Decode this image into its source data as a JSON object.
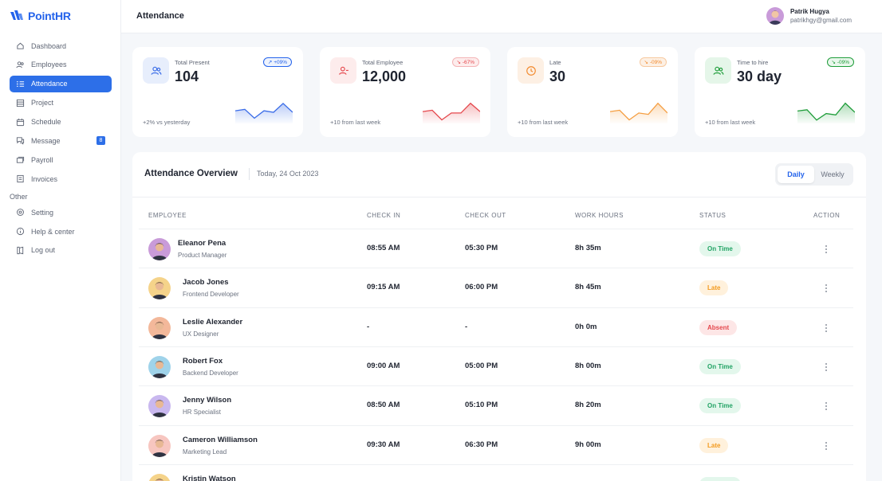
{
  "app": {
    "name": "PointHR"
  },
  "sidebar": {
    "items": [
      {
        "label": "Dashboard",
        "icon": "home-icon"
      },
      {
        "label": "Employees",
        "icon": "users-icon"
      },
      {
        "label": "Attendance",
        "icon": "list-icon",
        "active": true
      },
      {
        "label": "Project",
        "icon": "grid-icon"
      },
      {
        "label": "Schedule",
        "icon": "calendar-icon"
      },
      {
        "label": "Message",
        "icon": "chat-icon",
        "badge": "8"
      },
      {
        "label": "Payroll",
        "icon": "stack-icon"
      },
      {
        "label": "Invoices",
        "icon": "document-icon"
      }
    ],
    "other_title": "Other",
    "other_items": [
      {
        "label": "Setting",
        "icon": "gear-icon"
      },
      {
        "label": "Help & center",
        "icon": "info-icon"
      },
      {
        "label": "Log out",
        "icon": "logout-icon"
      }
    ]
  },
  "header": {
    "title": "Attendance",
    "user_name": "Patrik Hugya",
    "user_email": "patrikhgy@gmail.com"
  },
  "cards": [
    {
      "label": "Total Present",
      "value": "104",
      "chip": "+09%",
      "foot": "+2% vs yesterday",
      "color": "#3b6de8",
      "icon": "users-icon",
      "spark": [
        8,
        9,
        3,
        8,
        7,
        13,
        7
      ]
    },
    {
      "label": "Total Employee",
      "value": "12,000",
      "chip": "-67%",
      "foot": "+10 from last week",
      "color": "#e5484d",
      "icon": "user-minus-icon",
      "spark": [
        8,
        9,
        2,
        7,
        7,
        14,
        8
      ]
    },
    {
      "label": "Late",
      "value": "30",
      "chip": "-09%",
      "foot": "+10 from last week",
      "color": "#f59e42",
      "icon": "clock-icon",
      "spark": [
        8,
        9,
        2,
        7,
        6,
        14,
        7
      ]
    },
    {
      "label": "Time to hire",
      "value": "30 day",
      "chip": "-09%",
      "foot": "+10 from last week",
      "color": "#1f9d3a",
      "icon": "users-icon",
      "spark": [
        9,
        10,
        2,
        7,
        6,
        15,
        8
      ]
    }
  ],
  "overview": {
    "title": "Attendance Overview",
    "date": "Today, 24 Oct 2023",
    "toggle": [
      "Daily",
      "Weekly"
    ],
    "columns": [
      "EMPLOYEE",
      "CHECK IN",
      "CHECK OUT",
      "WORK HOURS",
      "STATUS",
      "ACTION"
    ],
    "rows": [
      {
        "name": "Eleanor Pena",
        "role": "Product Manager",
        "check_in": "08:55 AM",
        "check_out": "05:30 PM",
        "hours": "8h 35m",
        "status": "On Time",
        "avatar": "#c99bd9"
      },
      {
        "name": "Jacob Jones",
        "role": "Frontend Developer",
        "check_in": "09:15 AM",
        "check_out": "06:00 PM",
        "hours": "8h 45m",
        "status": "Late",
        "avatar": "#f5d38a"
      },
      {
        "name": "Leslie Alexander",
        "role": "UX Designer",
        "check_in": "-",
        "check_out": "-",
        "hours": "0h 0m",
        "status": "Absent",
        "avatar": "#f3b89a"
      },
      {
        "name": "Robert Fox",
        "role": "Backend Developer",
        "check_in": "09:00 AM",
        "check_out": "05:00 PM",
        "hours": "8h 00m",
        "status": "On Time",
        "avatar": "#9fd3ea"
      },
      {
        "name": "Jenny Wilson",
        "role": "HR Specialist",
        "check_in": "08:50 AM",
        "check_out": "05:10 PM",
        "hours": "8h 20m",
        "status": "On Time",
        "avatar": "#c9b8ef"
      },
      {
        "name": "Cameron Williamson",
        "role": "Marketing Lead",
        "check_in": "09:30 AM",
        "check_out": "06:30 PM",
        "hours": "9h 00m",
        "status": "Late",
        "avatar": "#f7c6c0"
      },
      {
        "name": "Kristin Watson",
        "role": "",
        "check_in": "",
        "check_out": "",
        "hours": "",
        "status": "On Time",
        "avatar": "#f5d38a"
      }
    ]
  },
  "colors": {
    "accent": "#2d6fe8",
    "on_time_bg": "#e3f7ec",
    "on_time_fg": "#22a365",
    "late_bg": "#fff1dc",
    "late_fg": "#f39a1e",
    "absent_bg": "#fde6e6",
    "absent_fg": "#e5484d"
  }
}
